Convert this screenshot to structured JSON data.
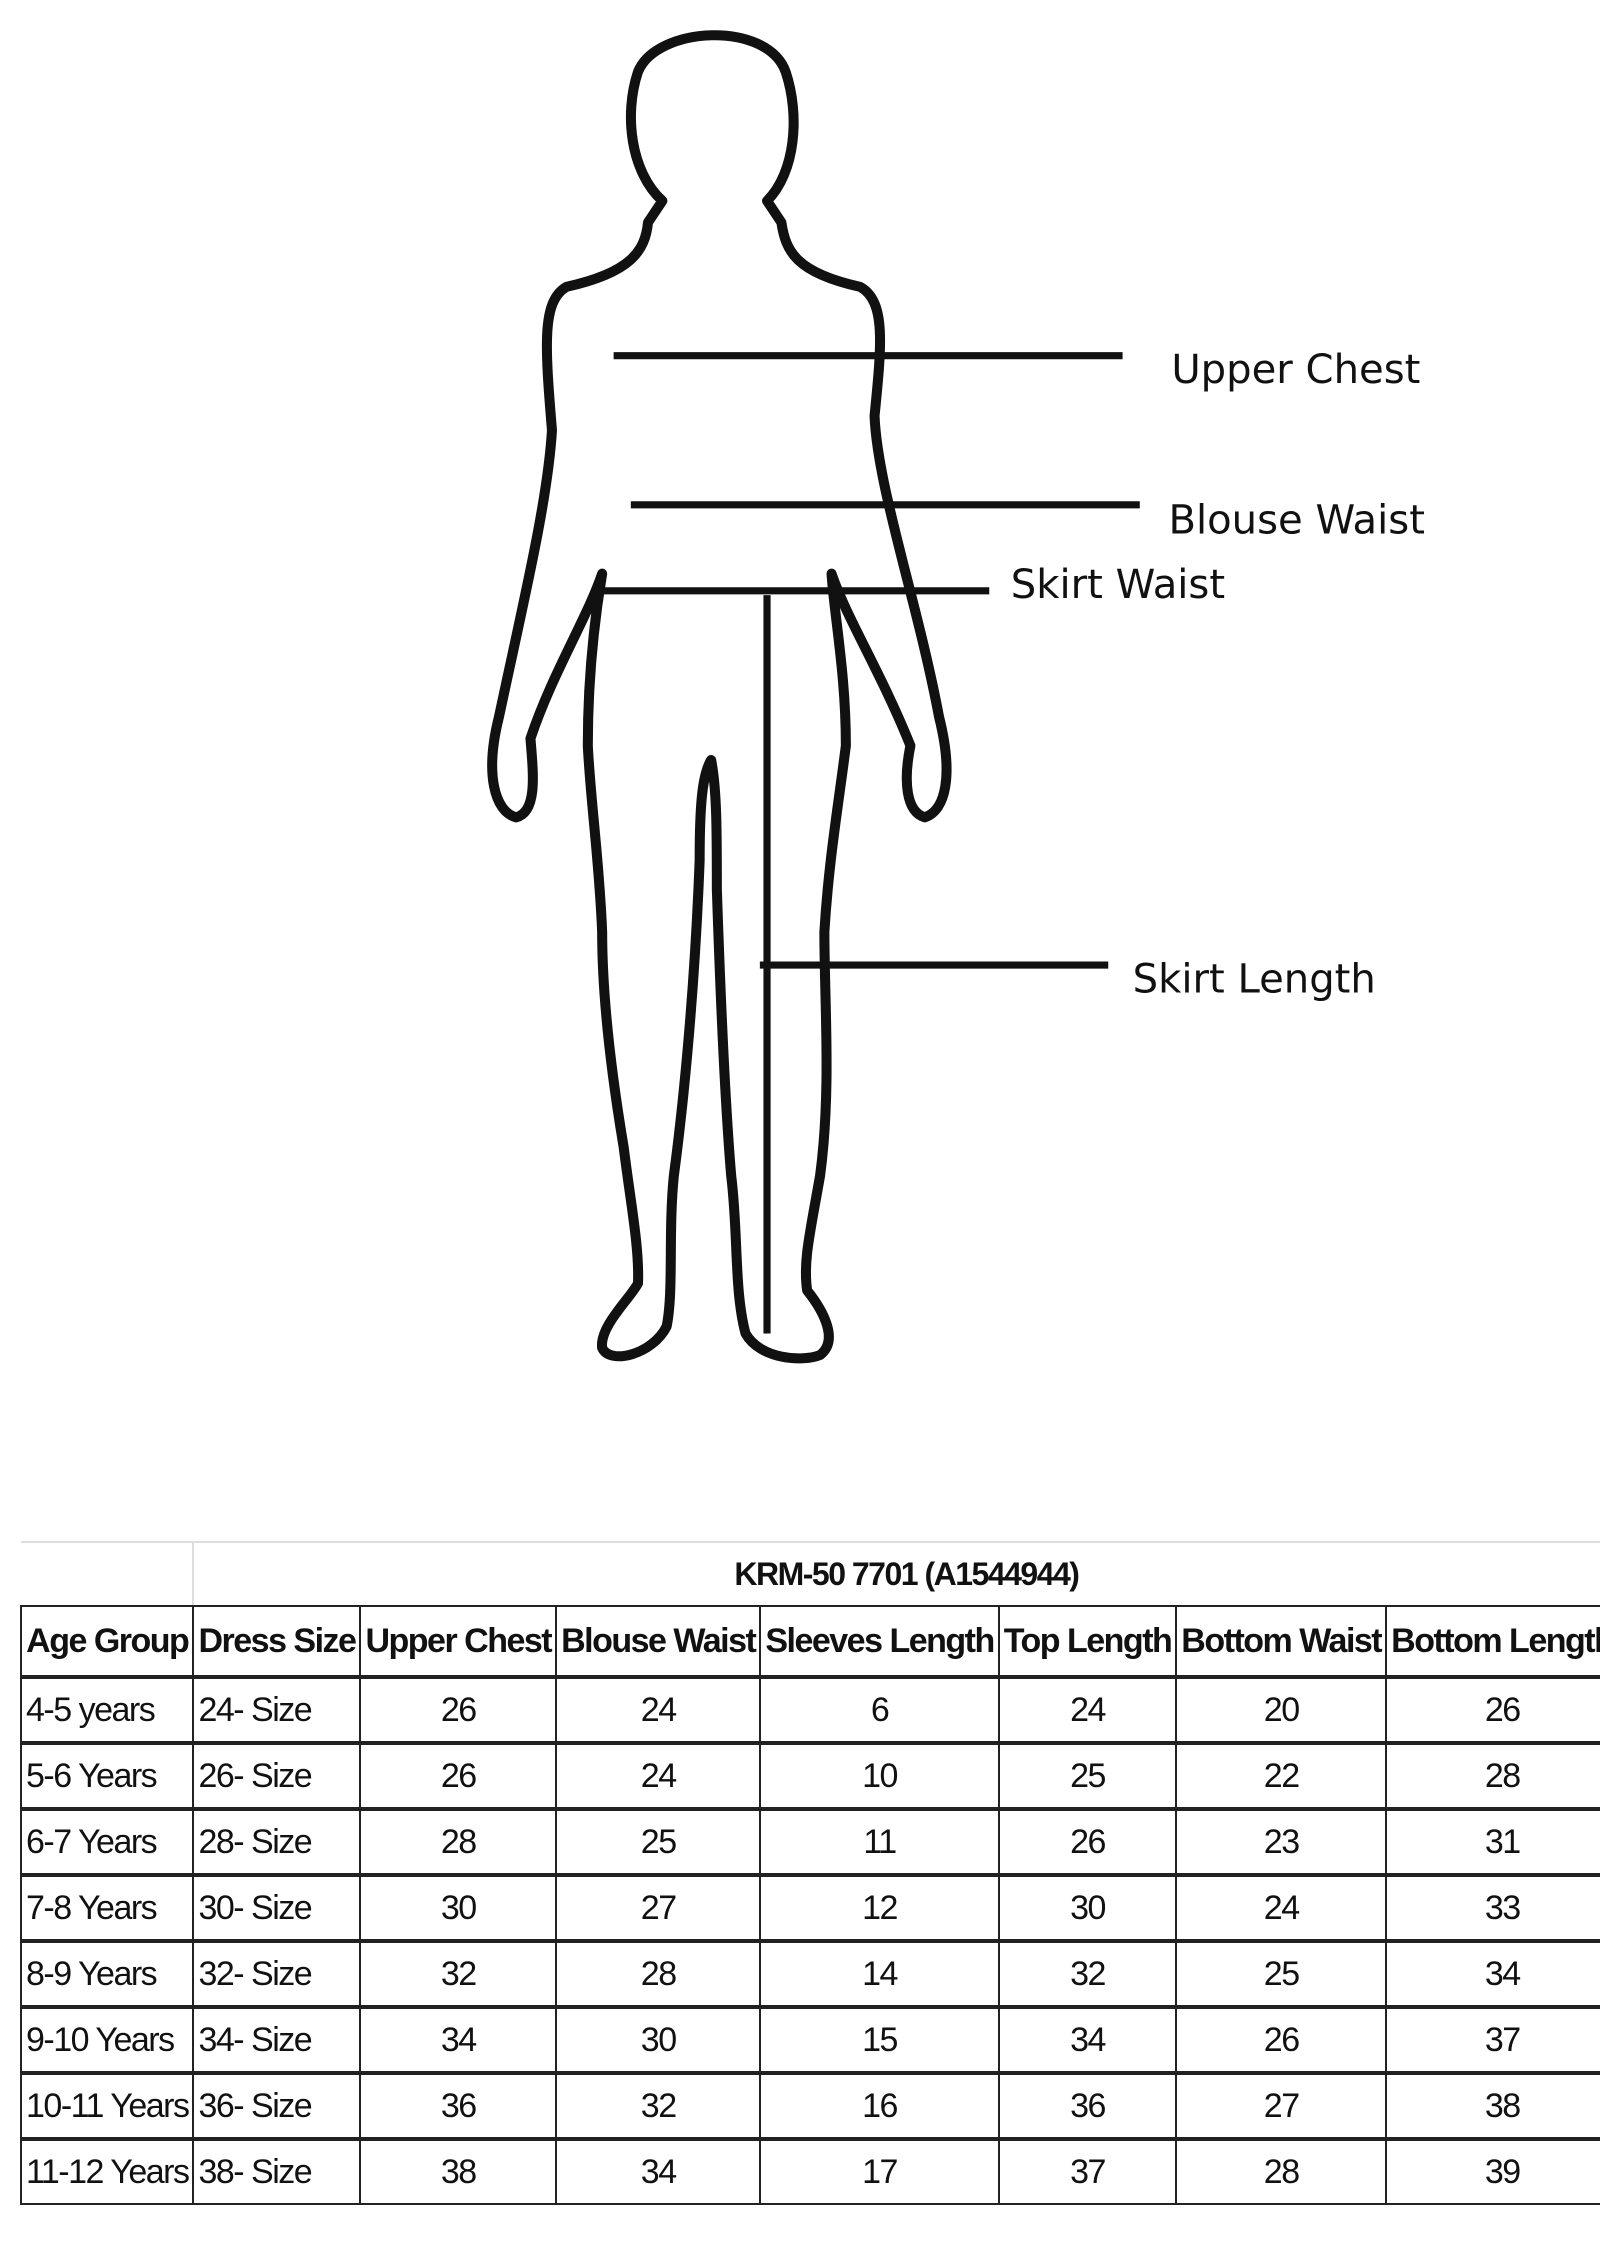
{
  "diagram": {
    "labels": {
      "upper_chest": "Upper Chest",
      "blouse_waist": "Blouse Waist",
      "skirt_waist": "Skirt Waist",
      "skirt_length": "Skirt Length"
    }
  },
  "table": {
    "title": "KRM-50 7701 (A1544944)",
    "columns": [
      "Age Group",
      "Dress Size",
      "Upper Chest",
      "Blouse Waist",
      "Sleeves Length",
      "Top Length",
      "Bottom Waist",
      "Bottom Length"
    ],
    "rows": [
      [
        "4-5 years",
        "24- Size",
        "26",
        "24",
        "6",
        "24",
        "20",
        "26"
      ],
      [
        "5-6 Years",
        "26- Size",
        "26",
        "24",
        "10",
        "25",
        "22",
        "28"
      ],
      [
        "6-7 Years",
        "28- Size",
        "28",
        "25",
        "11",
        "26",
        "23",
        "31"
      ],
      [
        "7-8 Years",
        "30- Size",
        "30",
        "27",
        "12",
        "30",
        "24",
        "33"
      ],
      [
        "8-9 Years",
        "32- Size",
        "32",
        "28",
        "14",
        "32",
        "25",
        "34"
      ],
      [
        "9-10 Years",
        "34- Size",
        "34",
        "30",
        "15",
        "34",
        "26",
        "37"
      ],
      [
        "10-11 Years",
        "36- Size",
        "36",
        "32",
        "16",
        "36",
        "27",
        "38"
      ],
      [
        "11-12 Years",
        "38- Size",
        "38",
        "34",
        "17",
        "37",
        "28",
        "39"
      ]
    ]
  }
}
